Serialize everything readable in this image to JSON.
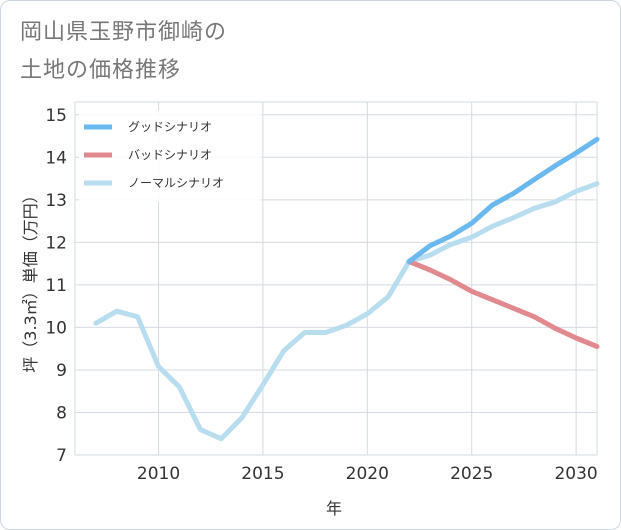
{
  "title_lines": [
    "岡山県玉野市御崎の",
    "土地の価格推移"
  ],
  "chart_data": {
    "type": "line",
    "xlabel": "年",
    "ylabel": "坪（3.3㎡）単価（万円）",
    "xlim": [
      2006,
      2031
    ],
    "ylim": [
      7,
      15.3
    ],
    "x_ticks": [
      2010,
      2015,
      2020,
      2025,
      2030
    ],
    "y_ticks": [
      7,
      8,
      9,
      10,
      11,
      12,
      13,
      14,
      15
    ],
    "grid": true,
    "legend_position": "top-left",
    "series": [
      {
        "name": "グッドシナリオ",
        "color": "#6bb8ee",
        "x": [
          2022,
          2023,
          2024,
          2025,
          2026,
          2027,
          2028,
          2029,
          2030,
          2031
        ],
        "values": [
          11.55,
          11.92,
          12.15,
          12.45,
          12.88,
          13.15,
          13.48,
          13.8,
          14.1,
          14.42
        ]
      },
      {
        "name": "バッドシナリオ",
        "color": "#e08a8f",
        "x": [
          2022,
          2023,
          2024,
          2025,
          2026,
          2027,
          2028,
          2029,
          2030,
          2031
        ],
        "values": [
          11.55,
          11.35,
          11.12,
          10.85,
          10.65,
          10.45,
          10.25,
          9.98,
          9.75,
          9.55
        ]
      },
      {
        "name": "ノーマルシナリオ",
        "color": "#b8ddef",
        "x": [
          2007,
          2008,
          2009,
          2010,
          2011,
          2012,
          2013,
          2014,
          2015,
          2016,
          2017,
          2018,
          2019,
          2020,
          2021,
          2022,
          2023,
          2024,
          2025,
          2026,
          2027,
          2028,
          2029,
          2030,
          2031
        ],
        "values": [
          10.1,
          10.38,
          10.25,
          9.08,
          8.6,
          7.6,
          7.38,
          7.88,
          8.65,
          9.45,
          9.88,
          9.88,
          10.05,
          10.32,
          10.72,
          11.55,
          11.7,
          11.95,
          12.12,
          12.38,
          12.58,
          12.8,
          12.95,
          13.2,
          13.38
        ]
      }
    ]
  }
}
